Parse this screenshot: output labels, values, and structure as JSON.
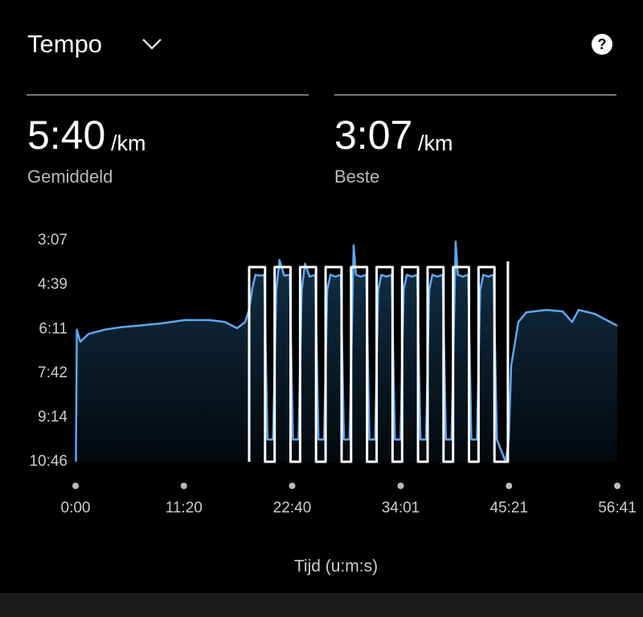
{
  "header": {
    "title": "Tempo",
    "help_icon": "?"
  },
  "stats": [
    {
      "value": "5:40",
      "unit": "/km",
      "label": "Gemiddeld"
    },
    {
      "value": "3:07",
      "unit": "/km",
      "label": "Beste"
    }
  ],
  "chart_data": {
    "type": "line",
    "x_label": "Tijd (u:m:s)",
    "xlim": [
      0,
      3401
    ],
    "xticks": [
      {
        "value": 0,
        "label": "0:00"
      },
      {
        "value": 680,
        "label": "11:20"
      },
      {
        "value": 1360,
        "label": "22:40"
      },
      {
        "value": 2041,
        "label": "34:01"
      },
      {
        "value": 2721,
        "label": "45:21"
      },
      {
        "value": 3401,
        "label": "56:41"
      }
    ],
    "ylim": [
      646,
      187
    ],
    "yticks": [
      {
        "value": 187,
        "label": "3:07"
      },
      {
        "value": 279,
        "label": "4:39"
      },
      {
        "value": 371,
        "label": "6:11"
      },
      {
        "value": 462,
        "label": "7:42"
      },
      {
        "value": 554,
        "label": "9:14"
      },
      {
        "value": 646,
        "label": "10:46"
      }
    ],
    "series": [
      {
        "color": "#5ea8f2",
        "x": [
          2,
          8,
          30,
          81,
          182,
          283,
          383,
          535,
          686,
          838,
          938,
          1014,
          1065,
          1090,
          1110,
          1130,
          1160,
          1185,
          1205,
          1240,
          1260,
          1280,
          1310,
          1345,
          1365,
          1400,
          1420,
          1440,
          1470,
          1505,
          1525,
          1560,
          1580,
          1600,
          1630,
          1665,
          1685,
          1720,
          1740,
          1746,
          1760,
          1790,
          1825,
          1845,
          1880,
          1900,
          1920,
          1950,
          1985,
          2005,
          2040,
          2060,
          2080,
          2110,
          2145,
          2165,
          2200,
          2220,
          2240,
          2270,
          2305,
          2325,
          2360,
          2380,
          2386,
          2400,
          2430,
          2465,
          2485,
          2520,
          2540,
          2560,
          2590,
          2625,
          2645,
          2700,
          2720,
          2735,
          2780,
          2830,
          2957,
          3058,
          3118,
          3158,
          3259,
          3401
        ],
        "values": [
          646,
          372,
          397,
          381,
          372,
          367,
          364,
          359,
          352,
          352,
          356,
          369,
          356,
          330,
          285,
          258,
          260,
          258,
          600,
          600,
          290,
          227,
          260,
          258,
          600,
          600,
          290,
          235,
          262,
          258,
          600,
          600,
          290,
          258,
          262,
          258,
          600,
          600,
          290,
          197,
          258,
          262,
          258,
          600,
          600,
          290,
          258,
          262,
          258,
          600,
          600,
          290,
          258,
          262,
          258,
          600,
          600,
          290,
          258,
          262,
          258,
          600,
          600,
          290,
          189,
          258,
          262,
          258,
          600,
          600,
          290,
          258,
          262,
          258,
          600,
          646,
          600,
          447,
          356,
          336,
          331,
          334,
          356,
          331,
          339,
          364
        ]
      },
      {
        "color": "#ffffff",
        "x": [
          1090,
          1090,
          1190,
          1190,
          1250,
          1250,
          1350,
          1350,
          1410,
          1410,
          1510,
          1510,
          1570,
          1570,
          1670,
          1670,
          1730,
          1730,
          1830,
          1830,
          1890,
          1890,
          1990,
          1990,
          2050,
          2050,
          2150,
          2150,
          2210,
          2210,
          2310,
          2310,
          2370,
          2370,
          2470,
          2470,
          2530,
          2530,
          2630,
          2630,
          2714,
          2714
        ],
        "values": [
          646,
          242,
          242,
          646,
          646,
          242,
          242,
          646,
          646,
          242,
          242,
          646,
          646,
          242,
          242,
          646,
          646,
          242,
          242,
          646,
          646,
          242,
          242,
          646,
          646,
          242,
          242,
          646,
          646,
          242,
          242,
          646,
          646,
          242,
          242,
          646,
          646,
          242,
          242,
          646,
          646,
          230
        ]
      }
    ]
  }
}
